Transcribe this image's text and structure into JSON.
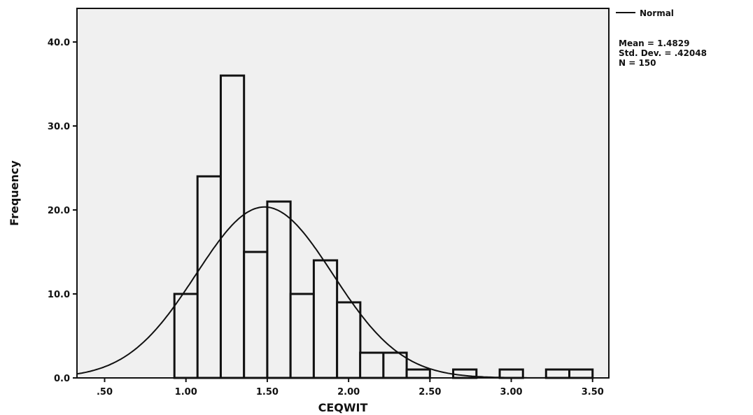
{
  "chart_data": {
    "type": "bar",
    "subtype": "histogram",
    "title": "",
    "xlabel": "CEQWIT",
    "ylabel": "Frequency",
    "xlim": [
      0.33,
      3.6
    ],
    "ylim": [
      0,
      44
    ],
    "bin_width": 0.143,
    "x_ticks": [
      {
        "value": 0.5,
        "label": ".50"
      },
      {
        "value": 1.0,
        "label": "1.00"
      },
      {
        "value": 1.5,
        "label": "1.50"
      },
      {
        "value": 2.0,
        "label": "2.00"
      },
      {
        "value": 2.5,
        "label": "2.50"
      },
      {
        "value": 3.0,
        "label": "3.00"
      },
      {
        "value": 3.5,
        "label": "3.50"
      }
    ],
    "y_ticks": [
      {
        "value": 0,
        "label": "0.0"
      },
      {
        "value": 10,
        "label": "10.0"
      },
      {
        "value": 20,
        "label": "20.0"
      },
      {
        "value": 30,
        "label": "30.0"
      },
      {
        "value": 40,
        "label": "40.0"
      }
    ],
    "bins": [
      {
        "start": 0.929,
        "count": 10
      },
      {
        "start": 1.071,
        "count": 24
      },
      {
        "start": 1.214,
        "count": 36
      },
      {
        "start": 1.357,
        "count": 15
      },
      {
        "start": 1.5,
        "count": 21
      },
      {
        "start": 1.643,
        "count": 10
      },
      {
        "start": 1.786,
        "count": 14
      },
      {
        "start": 1.929,
        "count": 9
      },
      {
        "start": 2.071,
        "count": 3
      },
      {
        "start": 2.214,
        "count": 3
      },
      {
        "start": 2.357,
        "count": 1
      },
      {
        "start": 2.5,
        "count": 0
      },
      {
        "start": 2.643,
        "count": 1
      },
      {
        "start": 2.786,
        "count": 0
      },
      {
        "start": 2.929,
        "count": 1
      },
      {
        "start": 3.071,
        "count": 0
      },
      {
        "start": 3.214,
        "count": 1
      },
      {
        "start": 3.357,
        "count": 1
      }
    ],
    "normal_curve": {
      "mean": 1.4829,
      "std_dev": 0.42048,
      "n": 150
    },
    "legend": {
      "position": "top-right",
      "curve_label": "Normal",
      "stats": [
        "Mean = 1.4829",
        "Std. Dev. = .42048",
        "N = 150"
      ]
    },
    "grid": false
  }
}
